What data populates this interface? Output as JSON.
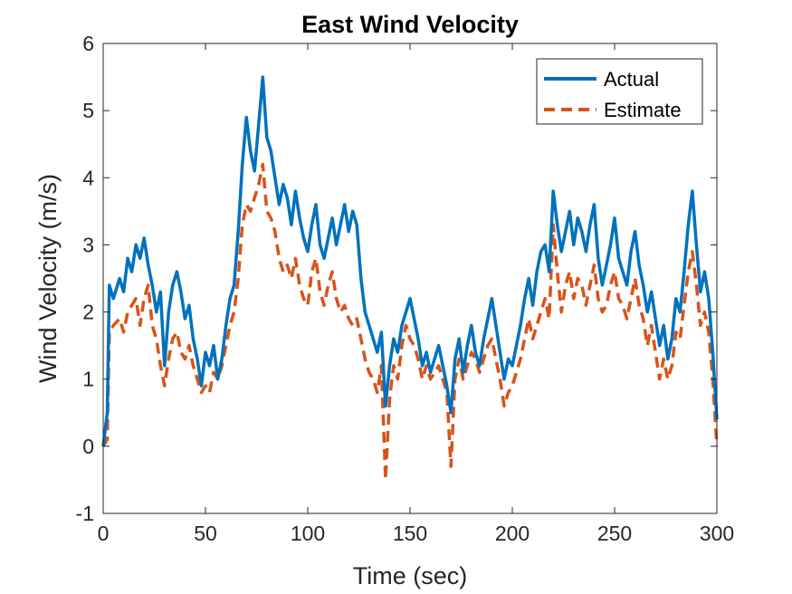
{
  "chart_data": {
    "type": "line",
    "title": "East Wind Velocity",
    "xlabel": "Time (sec)",
    "ylabel": "Wind Velocity (m/s)",
    "xlim": [
      0,
      300
    ],
    "ylim": [
      -1,
      6
    ],
    "xticks": [
      0,
      50,
      100,
      150,
      200,
      250,
      300
    ],
    "yticks": [
      -1,
      0,
      1,
      2,
      3,
      4,
      5,
      6
    ],
    "grid": false,
    "legend_position": "top-right",
    "series": [
      {
        "name": "Actual",
        "color": "#0072BD",
        "style": "solid",
        "x": [
          0,
          2,
          3,
          5,
          8,
          10,
          12,
          14,
          16,
          18,
          20,
          22,
          24,
          26,
          28,
          30,
          32,
          34,
          36,
          38,
          40,
          42,
          44,
          46,
          48,
          50,
          52,
          54,
          56,
          58,
          60,
          62,
          64,
          66,
          68,
          70,
          72,
          74,
          76,
          78,
          80,
          82,
          84,
          86,
          88,
          90,
          92,
          94,
          96,
          98,
          100,
          102,
          104,
          106,
          108,
          110,
          112,
          114,
          116,
          118,
          120,
          122,
          124,
          126,
          128,
          130,
          132,
          134,
          136,
          138,
          140,
          142,
          144,
          146,
          148,
          150,
          152,
          154,
          156,
          158,
          160,
          162,
          164,
          166,
          168,
          170,
          172,
          174,
          176,
          178,
          180,
          182,
          184,
          186,
          188,
          190,
          192,
          194,
          196,
          198,
          200,
          202,
          204,
          206,
          208,
          210,
          212,
          214,
          216,
          218,
          220,
          222,
          224,
          226,
          228,
          230,
          232,
          234,
          236,
          238,
          240,
          242,
          244,
          246,
          248,
          250,
          252,
          254,
          256,
          258,
          260,
          262,
          264,
          266,
          268,
          270,
          272,
          274,
          276,
          278,
          280,
          282,
          284,
          286,
          288,
          290,
          292,
          294,
          296,
          298,
          300
        ],
        "y": [
          0.0,
          0.5,
          2.4,
          2.2,
          2.5,
          2.3,
          2.8,
          2.6,
          3.0,
          2.8,
          3.1,
          2.7,
          2.4,
          2.0,
          2.3,
          1.2,
          2.0,
          2.4,
          2.6,
          2.3,
          1.9,
          2.1,
          1.6,
          1.3,
          0.9,
          1.4,
          1.2,
          1.5,
          1.0,
          1.3,
          1.8,
          2.2,
          2.4,
          3.2,
          4.2,
          4.9,
          4.4,
          4.1,
          4.8,
          5.5,
          4.6,
          4.4,
          4.0,
          3.6,
          3.9,
          3.7,
          3.3,
          3.8,
          3.4,
          3.1,
          2.9,
          3.3,
          3.6,
          3.0,
          2.8,
          3.1,
          3.4,
          3.0,
          3.3,
          3.6,
          3.2,
          3.5,
          3.3,
          2.5,
          2.0,
          1.8,
          1.6,
          1.4,
          1.7,
          0.6,
          1.2,
          1.6,
          1.4,
          1.8,
          2.0,
          2.2,
          1.9,
          1.6,
          1.2,
          1.4,
          1.1,
          1.3,
          1.5,
          1.2,
          0.9,
          0.5,
          1.3,
          1.6,
          1.1,
          1.5,
          1.8,
          1.4,
          1.2,
          1.6,
          1.9,
          2.2,
          1.8,
          1.4,
          1.0,
          1.3,
          1.2,
          1.5,
          1.8,
          2.2,
          2.5,
          2.1,
          2.6,
          2.9,
          3.0,
          2.6,
          3.8,
          3.3,
          2.9,
          3.2,
          3.5,
          3.0,
          3.4,
          3.2,
          2.9,
          3.3,
          3.6,
          2.8,
          2.4,
          2.7,
          3.0,
          3.4,
          2.8,
          2.6,
          2.4,
          2.9,
          3.2,
          2.7,
          2.4,
          2.0,
          2.3,
          1.9,
          1.5,
          1.8,
          1.3,
          1.6,
          2.2,
          2.0,
          2.6,
          3.3,
          3.8,
          3.0,
          2.3,
          2.6,
          2.2,
          1.4,
          0.4
        ]
      },
      {
        "name": "Estimate",
        "color": "#D95319",
        "style": "dashed",
        "x": [
          0,
          2,
          3,
          5,
          8,
          10,
          12,
          14,
          16,
          18,
          20,
          22,
          24,
          26,
          28,
          30,
          32,
          34,
          36,
          38,
          40,
          42,
          44,
          46,
          48,
          50,
          52,
          54,
          56,
          58,
          60,
          62,
          64,
          66,
          68,
          70,
          72,
          74,
          76,
          78,
          80,
          82,
          84,
          86,
          88,
          90,
          92,
          94,
          96,
          98,
          100,
          102,
          104,
          106,
          108,
          110,
          112,
          114,
          116,
          118,
          120,
          122,
          124,
          126,
          128,
          130,
          132,
          134,
          136,
          138,
          140,
          142,
          144,
          146,
          148,
          150,
          152,
          154,
          156,
          158,
          160,
          162,
          164,
          166,
          168,
          170,
          172,
          174,
          176,
          178,
          180,
          182,
          184,
          186,
          188,
          190,
          192,
          194,
          196,
          198,
          200,
          202,
          204,
          206,
          208,
          210,
          212,
          214,
          216,
          218,
          220,
          222,
          224,
          226,
          228,
          230,
          232,
          234,
          236,
          238,
          240,
          242,
          244,
          246,
          248,
          250,
          252,
          254,
          256,
          258,
          260,
          262,
          264,
          266,
          268,
          270,
          272,
          274,
          276,
          278,
          280,
          282,
          284,
          286,
          288,
          290,
          292,
          294,
          296,
          298,
          300
        ],
        "y": [
          0.0,
          0.1,
          1.7,
          1.8,
          1.9,
          1.7,
          2.0,
          2.1,
          2.2,
          1.8,
          2.2,
          2.4,
          1.8,
          1.6,
          1.2,
          0.9,
          1.3,
          1.6,
          1.7,
          1.4,
          1.3,
          1.5,
          1.2,
          1.0,
          0.8,
          0.9,
          0.8,
          1.1,
          1.0,
          1.2,
          1.5,
          1.8,
          2.0,
          2.5,
          3.3,
          3.6,
          3.5,
          3.7,
          3.9,
          4.2,
          3.5,
          3.4,
          3.2,
          2.8,
          2.6,
          2.7,
          2.5,
          2.8,
          2.4,
          2.2,
          2.1,
          2.6,
          2.8,
          2.3,
          2.1,
          2.4,
          2.6,
          2.2,
          2.0,
          2.1,
          1.9,
          1.8,
          1.9,
          1.6,
          1.3,
          1.1,
          1.0,
          0.8,
          1.2,
          -0.5,
          0.7,
          1.2,
          1.0,
          1.5,
          1.8,
          1.6,
          1.5,
          1.3,
          1.0,
          1.2,
          1.0,
          1.1,
          1.2,
          1.0,
          0.8,
          -0.3,
          1.0,
          1.3,
          1.0,
          1.2,
          1.4,
          1.3,
          1.1,
          1.3,
          1.5,
          1.6,
          1.3,
          1.0,
          0.6,
          0.8,
          0.9,
          1.1,
          1.3,
          1.6,
          1.9,
          1.6,
          1.8,
          2.0,
          2.2,
          1.9,
          3.3,
          2.6,
          2.0,
          2.4,
          2.6,
          2.2,
          2.5,
          2.4,
          2.1,
          2.4,
          2.7,
          2.2,
          2.0,
          2.1,
          2.4,
          2.6,
          2.2,
          2.1,
          1.9,
          2.2,
          2.5,
          2.1,
          1.9,
          1.5,
          1.8,
          1.4,
          1.0,
          1.3,
          1.0,
          1.2,
          1.7,
          1.6,
          2.1,
          2.6,
          2.9,
          2.4,
          1.8,
          2.0,
          1.7,
          1.0,
          0.0
        ]
      }
    ]
  }
}
